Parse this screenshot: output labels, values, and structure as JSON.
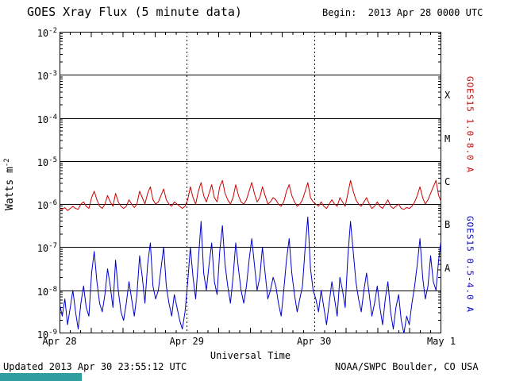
{
  "header": {
    "title": "GOES Xray Flux (5 minute data)",
    "begin_label": "Begin:  2013 Apr 28 0000 UTC"
  },
  "footer": {
    "updated": "Updated 2013 Apr 30 23:55:12 UTC",
    "credit": "NOAA/SWPC Boulder, CO USA"
  },
  "colors": {
    "long_band": "#cc0000",
    "short_band": "#0000cc",
    "grid": "#000000",
    "background": "#ffffff",
    "corner_bar": "#2f9e9e"
  },
  "chart_data": {
    "type": "line",
    "title": "GOES Xray Flux (5 minute data)",
    "xlabel": "Universal Time",
    "ylabel_base": "Watts m",
    "ylabel_exp": "-2",
    "y_scale": "log10",
    "ylim_log": [
      -9,
      -2
    ],
    "y_exponents": [
      -2,
      -3,
      -4,
      -5,
      -6,
      -7,
      -8,
      -9
    ],
    "x_span_hours": 72,
    "x_ticks": [
      {
        "label": "Apr 28",
        "hour": 0
      },
      {
        "label": "Apr 29",
        "hour": 24
      },
      {
        "label": "Apr 30",
        "hour": 48
      },
      {
        "label": "May 1",
        "hour": 72
      }
    ],
    "flare_classes": [
      {
        "label": "X",
        "log_center": -3.5
      },
      {
        "label": "M",
        "log_center": -4.5
      },
      {
        "label": "C",
        "log_center": -5.5
      },
      {
        "label": "B",
        "log_center": -6.5
      },
      {
        "label": "A",
        "log_center": -7.5
      }
    ],
    "sample_interval_minutes": 30,
    "series": [
      {
        "name": "GOES15 1.0-8.0 A",
        "color": "#cc0000",
        "log10_watts_per_m2": [
          -6.1,
          -6.12,
          -6.08,
          -6.15,
          -6.1,
          -6.05,
          -6.1,
          -6.12,
          -6.0,
          -5.95,
          -6.05,
          -6.1,
          -5.85,
          -5.7,
          -5.9,
          -6.05,
          -6.1,
          -6.0,
          -5.8,
          -5.95,
          -6.05,
          -5.75,
          -5.95,
          -6.05,
          -6.1,
          -6.05,
          -5.9,
          -6.0,
          -6.08,
          -6.0,
          -5.7,
          -5.85,
          -6.0,
          -5.75,
          -5.6,
          -5.9,
          -6.0,
          -5.95,
          -5.8,
          -5.65,
          -5.9,
          -6.0,
          -6.05,
          -5.95,
          -6.0,
          -6.05,
          -6.1,
          -6.05,
          -5.9,
          -5.6,
          -5.85,
          -6.0,
          -5.7,
          -5.5,
          -5.8,
          -5.95,
          -5.75,
          -5.55,
          -5.85,
          -5.95,
          -5.6,
          -5.45,
          -5.75,
          -5.9,
          -6.0,
          -5.85,
          -5.55,
          -5.8,
          -5.95,
          -6.0,
          -5.9,
          -5.7,
          -5.5,
          -5.75,
          -5.95,
          -5.85,
          -5.6,
          -5.8,
          -6.0,
          -5.95,
          -5.85,
          -5.9,
          -6.0,
          -6.05,
          -5.95,
          -5.7,
          -5.55,
          -5.8,
          -5.95,
          -6.05,
          -6.0,
          -5.9,
          -5.7,
          -5.5,
          -5.85,
          -5.95,
          -6.0,
          -6.05,
          -5.95,
          -6.05,
          -6.1,
          -6.0,
          -5.9,
          -6.0,
          -6.05,
          -5.85,
          -5.95,
          -6.05,
          -5.75,
          -5.45,
          -5.7,
          -5.9,
          -6.0,
          -6.05,
          -5.95,
          -5.85,
          -6.0,
          -6.1,
          -6.05,
          -5.95,
          -6.05,
          -6.1,
          -6.0,
          -5.9,
          -6.05,
          -6.1,
          -6.05,
          -6.0,
          -6.1,
          -6.12,
          -6.08,
          -6.1,
          -6.05,
          -5.95,
          -5.8,
          -5.6,
          -5.85,
          -6.0,
          -5.9,
          -5.75,
          -5.6,
          -5.45,
          -5.8,
          -5.95
        ]
      },
      {
        "name": "GOES15 0.5-4.0 A",
        "color": "#0000cc",
        "log10_watts_per_m2": [
          -8.3,
          -8.6,
          -8.2,
          -8.8,
          -8.4,
          -8.0,
          -8.5,
          -8.9,
          -8.3,
          -7.9,
          -8.4,
          -8.6,
          -7.6,
          -7.1,
          -7.8,
          -8.3,
          -8.5,
          -8.1,
          -7.5,
          -7.9,
          -8.4,
          -7.3,
          -8.0,
          -8.5,
          -8.7,
          -8.3,
          -7.8,
          -8.2,
          -8.6,
          -8.1,
          -7.2,
          -7.7,
          -8.3,
          -7.4,
          -6.9,
          -7.9,
          -8.2,
          -8.0,
          -7.5,
          -7.0,
          -7.9,
          -8.3,
          -8.6,
          -8.1,
          -8.4,
          -8.7,
          -8.9,
          -8.5,
          -7.8,
          -7.0,
          -7.7,
          -8.2,
          -7.3,
          -6.4,
          -7.6,
          -8.0,
          -7.4,
          -6.9,
          -7.8,
          -8.1,
          -7.1,
          -6.5,
          -7.4,
          -7.9,
          -8.3,
          -7.7,
          -6.9,
          -7.5,
          -8.0,
          -8.3,
          -7.9,
          -7.3,
          -6.8,
          -7.4,
          -8.0,
          -7.7,
          -7.0,
          -7.6,
          -8.2,
          -8.0,
          -7.7,
          -7.9,
          -8.3,
          -8.6,
          -8.0,
          -7.3,
          -6.8,
          -7.6,
          -8.1,
          -8.5,
          -8.2,
          -7.9,
          -7.0,
          -6.3,
          -7.5,
          -8.0,
          -8.2,
          -8.5,
          -8.0,
          -8.4,
          -8.8,
          -8.3,
          -7.8,
          -8.2,
          -8.6,
          -7.7,
          -8.0,
          -8.4,
          -7.2,
          -6.4,
          -7.1,
          -7.8,
          -8.2,
          -8.5,
          -8.0,
          -7.6,
          -8.1,
          -8.6,
          -8.3,
          -7.9,
          -8.4,
          -8.8,
          -8.2,
          -7.8,
          -8.5,
          -8.9,
          -8.4,
          -8.1,
          -8.7,
          -9.0,
          -8.6,
          -8.8,
          -8.3,
          -7.9,
          -7.4,
          -6.8,
          -7.7,
          -8.2,
          -7.9,
          -7.2,
          -7.8,
          -8.0,
          -7.3,
          -6.8
        ]
      }
    ]
  }
}
